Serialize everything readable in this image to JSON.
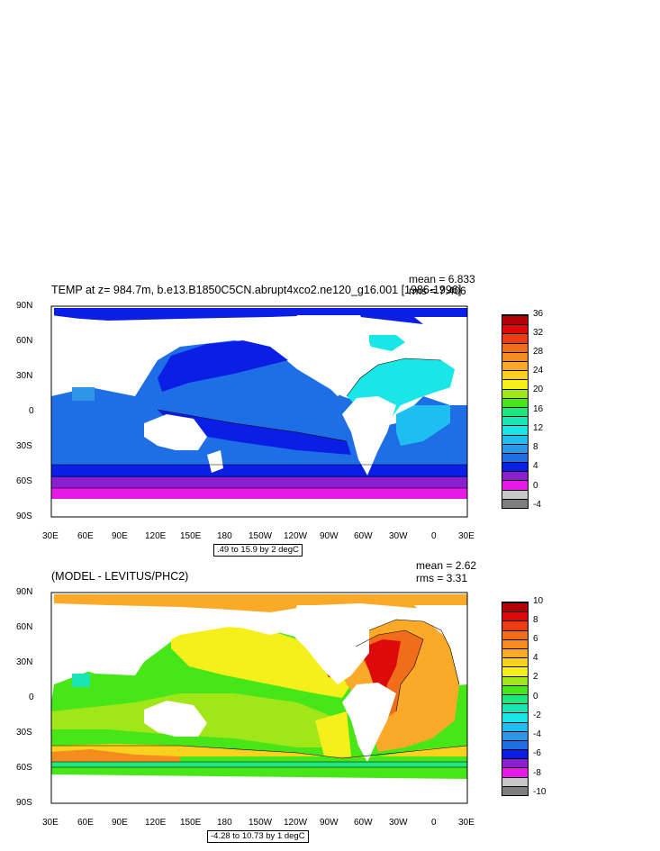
{
  "panels": [
    {
      "title": "TEMP at z= 984.7m, b.e13.B1850C5CN.abrupt4xco2.ne120_g16.001 [1986-1996]",
      "mean_text": "mean = 6.833",
      "rms_text": "rms = 7.406",
      "contour_info": ".49 to 15.9 by 2 degC",
      "lat_labels": [
        "90N",
        "60N",
        "30N",
        "0",
        "30S",
        "60S",
        "90S"
      ],
      "lon_labels": [
        "30E",
        "60E",
        "90E",
        "120E",
        "150E",
        "180",
        "150W",
        "120W",
        "90W",
        "60W",
        "30W",
        "0",
        "30E"
      ],
      "colorbar": {
        "labels": [
          "36",
          "32",
          "28",
          "24",
          "20",
          "16",
          "12",
          "8",
          "4",
          "0",
          "-4"
        ],
        "colors": [
          "#7f7f7f",
          "#c8c8c8",
          "#e619e6",
          "#8a1fd0",
          "#0a1ee6",
          "#1e6ee6",
          "#2d96e6",
          "#1ebef0",
          "#19e6e6",
          "#19e6b4",
          "#1ee67d",
          "#46e619",
          "#a0e619",
          "#f5f019",
          "#fad21e",
          "#faaa28",
          "#f58c1e",
          "#f06e19",
          "#eb3c14",
          "#dc0a0a",
          "#b40000"
        ]
      }
    },
    {
      "title": "(MODEL - LEVITUS/PHC2)",
      "mean_text": "mean = 2.62",
      "rms_text": "rms = 3.31",
      "contour_info": "-4.28 to 10.73 by 1 degC",
      "lat_labels": [
        "90N",
        "60N",
        "30N",
        "0",
        "30S",
        "60S",
        "90S"
      ],
      "lon_labels": [
        "30E",
        "60E",
        "90E",
        "120E",
        "150E",
        "180",
        "150W",
        "120W",
        "90W",
        "60W",
        "30W",
        "0",
        "30E"
      ],
      "colorbar": {
        "labels": [
          "10",
          "8",
          "6",
          "4",
          "2",
          "0",
          "-2",
          "-4",
          "-6",
          "-8",
          "-10"
        ],
        "colors": [
          "#7f7f7f",
          "#c8c8c8",
          "#e619e6",
          "#8a1fd0",
          "#0a1ee6",
          "#1e6ee6",
          "#2d96e6",
          "#1ebef0",
          "#19e6e6",
          "#19e6b4",
          "#1ee67d",
          "#46e619",
          "#a0e619",
          "#f5f019",
          "#fad21e",
          "#faaa28",
          "#f58c1e",
          "#f06e19",
          "#eb3c14",
          "#dc0a0a",
          "#b40000"
        ]
      }
    }
  ]
}
